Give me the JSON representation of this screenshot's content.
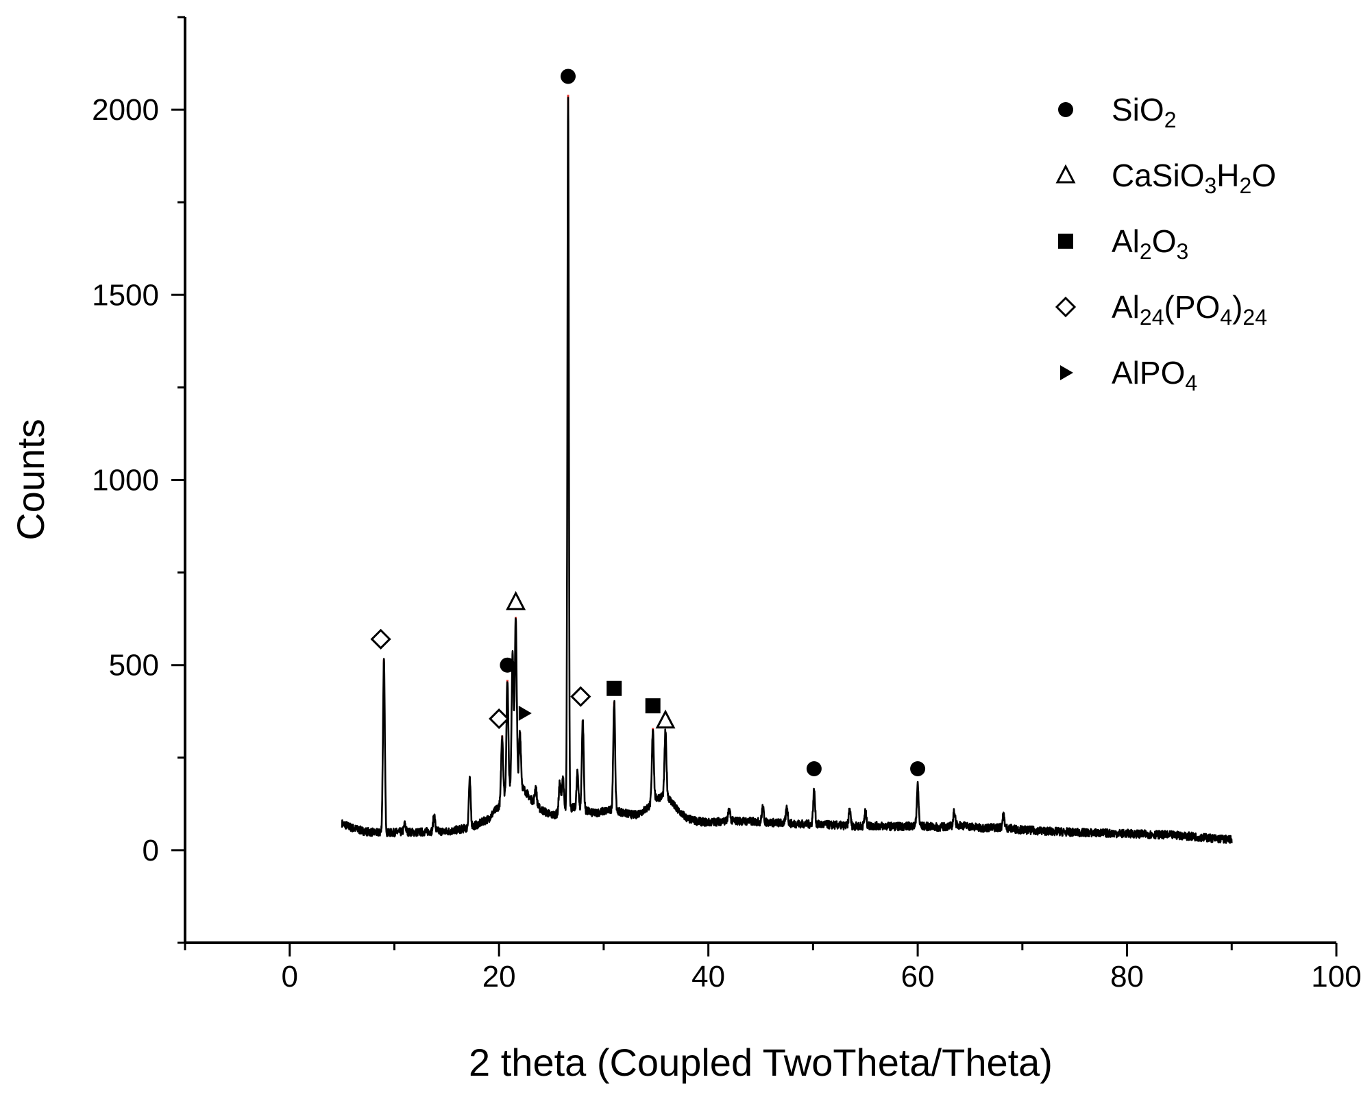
{
  "chart_data": {
    "type": "line",
    "xlabel": "2 theta (Coupled TwoTheta/Theta)",
    "ylabel": "Counts",
    "xlim": [
      -10,
      100
    ],
    "ylim": [
      -250,
      2250
    ],
    "x_ticks": [
      "0",
      "20",
      "40",
      "60",
      "80",
      "100"
    ],
    "y_ticks": [
      "0",
      "500",
      "1000",
      "1500",
      "2000"
    ],
    "grid": false,
    "legend_position": "top-right",
    "legend": [
      {
        "marker": "filled-circle",
        "label_parts": [
          [
            "SiO",
            ""
          ],
          [
            "2",
            "sub"
          ]
        ]
      },
      {
        "marker": "open-triangle",
        "label_parts": [
          [
            "CaSiO",
            ""
          ],
          [
            "3",
            "sub"
          ],
          [
            "H",
            ""
          ],
          [
            "2",
            "sub"
          ],
          [
            "O",
            ""
          ]
        ]
      },
      {
        "marker": "filled-square",
        "label_parts": [
          [
            "Al",
            ""
          ],
          [
            "2",
            "sub"
          ],
          [
            "O",
            ""
          ],
          [
            "3",
            "sub"
          ]
        ]
      },
      {
        "marker": "open-diamond",
        "label_parts": [
          [
            "Al",
            ""
          ],
          [
            "24",
            "sub"
          ],
          [
            "(PO",
            ""
          ],
          [
            "4",
            "sub"
          ],
          [
            ")",
            ""
          ],
          [
            "24",
            "sub"
          ]
        ]
      },
      {
        "marker": "filled-right-triangle",
        "label_parts": [
          [
            "AlPO",
            ""
          ],
          [
            "4",
            "sub"
          ]
        ]
      }
    ],
    "baseline": [
      [
        5,
        72
      ],
      [
        6,
        60
      ],
      [
        7,
        52
      ],
      [
        8,
        48
      ],
      [
        9,
        46
      ],
      [
        10,
        48
      ],
      [
        11,
        50
      ],
      [
        12,
        48
      ],
      [
        13,
        50
      ],
      [
        14,
        52
      ],
      [
        15,
        50
      ],
      [
        16,
        55
      ],
      [
        17,
        60
      ],
      [
        18,
        70
      ],
      [
        19,
        85
      ],
      [
        20,
        120
      ],
      [
        21,
        170
      ],
      [
        22,
        180
      ],
      [
        23,
        140
      ],
      [
        24,
        110
      ],
      [
        25,
        95
      ],
      [
        26,
        100
      ],
      [
        27,
        115
      ],
      [
        28,
        110
      ],
      [
        29,
        100
      ],
      [
        30,
        105
      ],
      [
        31,
        110
      ],
      [
        32,
        100
      ],
      [
        33,
        95
      ],
      [
        34,
        110
      ],
      [
        35,
        140
      ],
      [
        36,
        150
      ],
      [
        37,
        110
      ],
      [
        38,
        85
      ],
      [
        39,
        78
      ],
      [
        40,
        75
      ],
      [
        42,
        80
      ],
      [
        44,
        78
      ],
      [
        46,
        75
      ],
      [
        48,
        72
      ],
      [
        50,
        70
      ],
      [
        52,
        68
      ],
      [
        54,
        65
      ],
      [
        56,
        66
      ],
      [
        58,
        64
      ],
      [
        60,
        66
      ],
      [
        62,
        62
      ],
      [
        64,
        68
      ],
      [
        66,
        60
      ],
      [
        68,
        62
      ],
      [
        70,
        55
      ],
      [
        72,
        52
      ],
      [
        75,
        48
      ],
      [
        80,
        45
      ],
      [
        85,
        40
      ],
      [
        90,
        28
      ]
    ],
    "peaks": [
      {
        "x": 9.0,
        "y": 510
      },
      {
        "x": 11.0,
        "y": 70
      },
      {
        "x": 13.8,
        "y": 95
      },
      {
        "x": 17.2,
        "y": 190
      },
      {
        "x": 20.3,
        "y": 310
      },
      {
        "x": 20.8,
        "y": 460
      },
      {
        "x": 21.3,
        "y": 540
      },
      {
        "x": 21.6,
        "y": 630
      },
      {
        "x": 22.0,
        "y": 320
      },
      {
        "x": 23.5,
        "y": 170
      },
      {
        "x": 25.8,
        "y": 180
      },
      {
        "x": 26.1,
        "y": 200
      },
      {
        "x": 26.6,
        "y": 2040
      },
      {
        "x": 27.5,
        "y": 210
      },
      {
        "x": 28.0,
        "y": 350
      },
      {
        "x": 31.0,
        "y": 400
      },
      {
        "x": 34.7,
        "y": 330
      },
      {
        "x": 35.9,
        "y": 320
      },
      {
        "x": 42.0,
        "y": 110
      },
      {
        "x": 45.2,
        "y": 115
      },
      {
        "x": 47.5,
        "y": 115
      },
      {
        "x": 50.1,
        "y": 160
      },
      {
        "x": 53.5,
        "y": 110
      },
      {
        "x": 55.0,
        "y": 105
      },
      {
        "x": 60.0,
        "y": 175
      },
      {
        "x": 63.5,
        "y": 105
      },
      {
        "x": 68.2,
        "y": 95
      }
    ],
    "reference_lines": [
      {
        "x": 9.0,
        "y": 515
      },
      {
        "x": 20.3,
        "y": 310
      },
      {
        "x": 20.8,
        "y": 460
      },
      {
        "x": 21.6,
        "y": 630
      },
      {
        "x": 22.0,
        "y": 320
      },
      {
        "x": 26.6,
        "y": 2040
      },
      {
        "x": 28.0,
        "y": 350
      },
      {
        "x": 31.0,
        "y": 400
      },
      {
        "x": 34.7,
        "y": 330
      },
      {
        "x": 35.9,
        "y": 320
      }
    ],
    "markers": [
      {
        "phase": "SiO2",
        "marker": "filled-circle",
        "x": 26.6,
        "y": 2090
      },
      {
        "phase": "SiO2",
        "marker": "filled-circle",
        "x": 20.8,
        "y": 500
      },
      {
        "phase": "SiO2",
        "marker": "filled-circle",
        "x": 50.1,
        "y": 220
      },
      {
        "phase": "SiO2",
        "marker": "filled-circle",
        "x": 60.0,
        "y": 220
      },
      {
        "phase": "CaSiO3H2O",
        "marker": "open-triangle",
        "x": 21.6,
        "y": 670
      },
      {
        "phase": "CaSiO3H2O",
        "marker": "open-triangle",
        "x": 35.9,
        "y": 350
      },
      {
        "phase": "Al2O3",
        "marker": "filled-square",
        "x": 31.0,
        "y": 437
      },
      {
        "phase": "Al2O3",
        "marker": "filled-square",
        "x": 34.7,
        "y": 390
      },
      {
        "phase": "Al24(PO4)24",
        "marker": "open-diamond",
        "x": 8.7,
        "y": 570
      },
      {
        "phase": "Al24(PO4)24",
        "marker": "open-diamond",
        "x": 20.0,
        "y": 355
      },
      {
        "phase": "Al24(PO4)24",
        "marker": "open-diamond",
        "x": 27.8,
        "y": 415
      },
      {
        "phase": "AlPO4",
        "marker": "filled-right-triangle",
        "x": 22.4,
        "y": 370
      }
    ]
  }
}
